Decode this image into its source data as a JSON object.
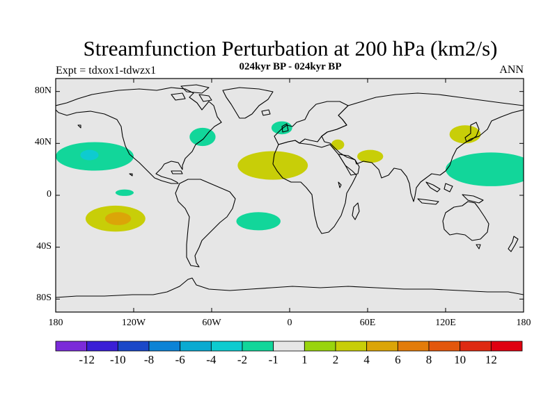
{
  "title": "Streamfunction Perturbation at 200 hPa (km2/s)",
  "subtitle": "024kyr BP - 024kyr BP",
  "expt_label": "Expt = tdxox1-tdwzx1",
  "season_label": "ANN",
  "map": {
    "projection": "cylindrical-equidistant",
    "lon_range": [
      -180,
      180
    ],
    "lat_range": [
      -90,
      90
    ],
    "background_color": "#e6e6e6",
    "coastline_color": "#000000",
    "lat_ticks": [
      {
        "lat": 80,
        "label": "80N"
      },
      {
        "lat": 40,
        "label": "40N"
      },
      {
        "lat": 0,
        "label": "0"
      },
      {
        "lat": -40,
        "label": "40S"
      },
      {
        "lat": -80,
        "label": "80S"
      }
    ],
    "lon_ticks": [
      {
        "lon": -180,
        "label": "180"
      },
      {
        "lon": -120,
        "label": "120W"
      },
      {
        "lon": -60,
        "label": "60W"
      },
      {
        "lon": 0,
        "label": "0"
      },
      {
        "lon": 60,
        "label": "60E"
      },
      {
        "lon": 120,
        "label": "120E"
      },
      {
        "lon": 180,
        "label": "180"
      }
    ],
    "anomalies": [
      {
        "name": "north-pacific-negative",
        "lon": -150,
        "lat": 30,
        "rlon": 30,
        "rlat": 11,
        "level": -2,
        "core": {
          "lon": -154,
          "lat": 31,
          "rlon": 7,
          "rlat": 4,
          "level": -4
        }
      },
      {
        "name": "tropical-pacific-negative",
        "lon": -127,
        "lat": 2,
        "rlon": 7,
        "rlat": 2.5,
        "level": -2
      },
      {
        "name": "south-pacific-positive",
        "lon": -134,
        "lat": -18,
        "rlon": 23,
        "rlat": 10,
        "level": 2,
        "core": {
          "lon": -132,
          "lat": -18,
          "rlon": 10,
          "rlat": 5,
          "level": 4
        }
      },
      {
        "name": "north-america-east-negative",
        "lon": -67,
        "lat": 45,
        "rlon": 10,
        "rlat": 7,
        "level": -2
      },
      {
        "name": "north-atlantic-negative",
        "lon": -6,
        "lat": 52,
        "rlon": 8,
        "rlat": 5,
        "level": -2
      },
      {
        "name": "tropical-atlantic-positive",
        "lon": -13,
        "lat": 23,
        "rlon": 27,
        "rlat": 11,
        "level": 2
      },
      {
        "name": "south-atlantic-negative",
        "lon": -24,
        "lat": -20,
        "rlon": 17,
        "rlat": 7,
        "level": -2
      },
      {
        "name": "mediterranean-positive",
        "lon": 37,
        "lat": 39,
        "rlon": 5,
        "rlat": 4,
        "level": 2
      },
      {
        "name": "central-asia-positive",
        "lon": 62,
        "lat": 30,
        "rlon": 10,
        "rlat": 5,
        "level": 2
      },
      {
        "name": "east-asia-positive",
        "lon": 135,
        "lat": 47,
        "rlon": 12,
        "rlat": 7,
        "level": 2
      },
      {
        "name": "west-pacific-negative",
        "lon": 155,
        "lat": 20,
        "rlon": 35,
        "rlat": 13,
        "level": -2
      }
    ]
  },
  "colorbar": {
    "colors": [
      "#7b2bd9",
      "#3a1fd6",
      "#1a48c8",
      "#0d83d6",
      "#0aaad1",
      "#0ecbd0",
      "#12d69a",
      "#e6e6e6",
      "#99d40e",
      "#c8ce08",
      "#dba508",
      "#e37c0a",
      "#e3570c",
      "#de2a12",
      "#e00010"
    ],
    "labels": [
      "-12",
      "-10",
      "-8",
      "-6",
      "-4",
      "-2",
      "-1",
      "1",
      "2",
      "4",
      "6",
      "8",
      "10",
      "12"
    ],
    "levels": [
      -12,
      -10,
      -8,
      -6,
      -4,
      -2,
      -1,
      1,
      2,
      4,
      6,
      8,
      10,
      12
    ]
  }
}
